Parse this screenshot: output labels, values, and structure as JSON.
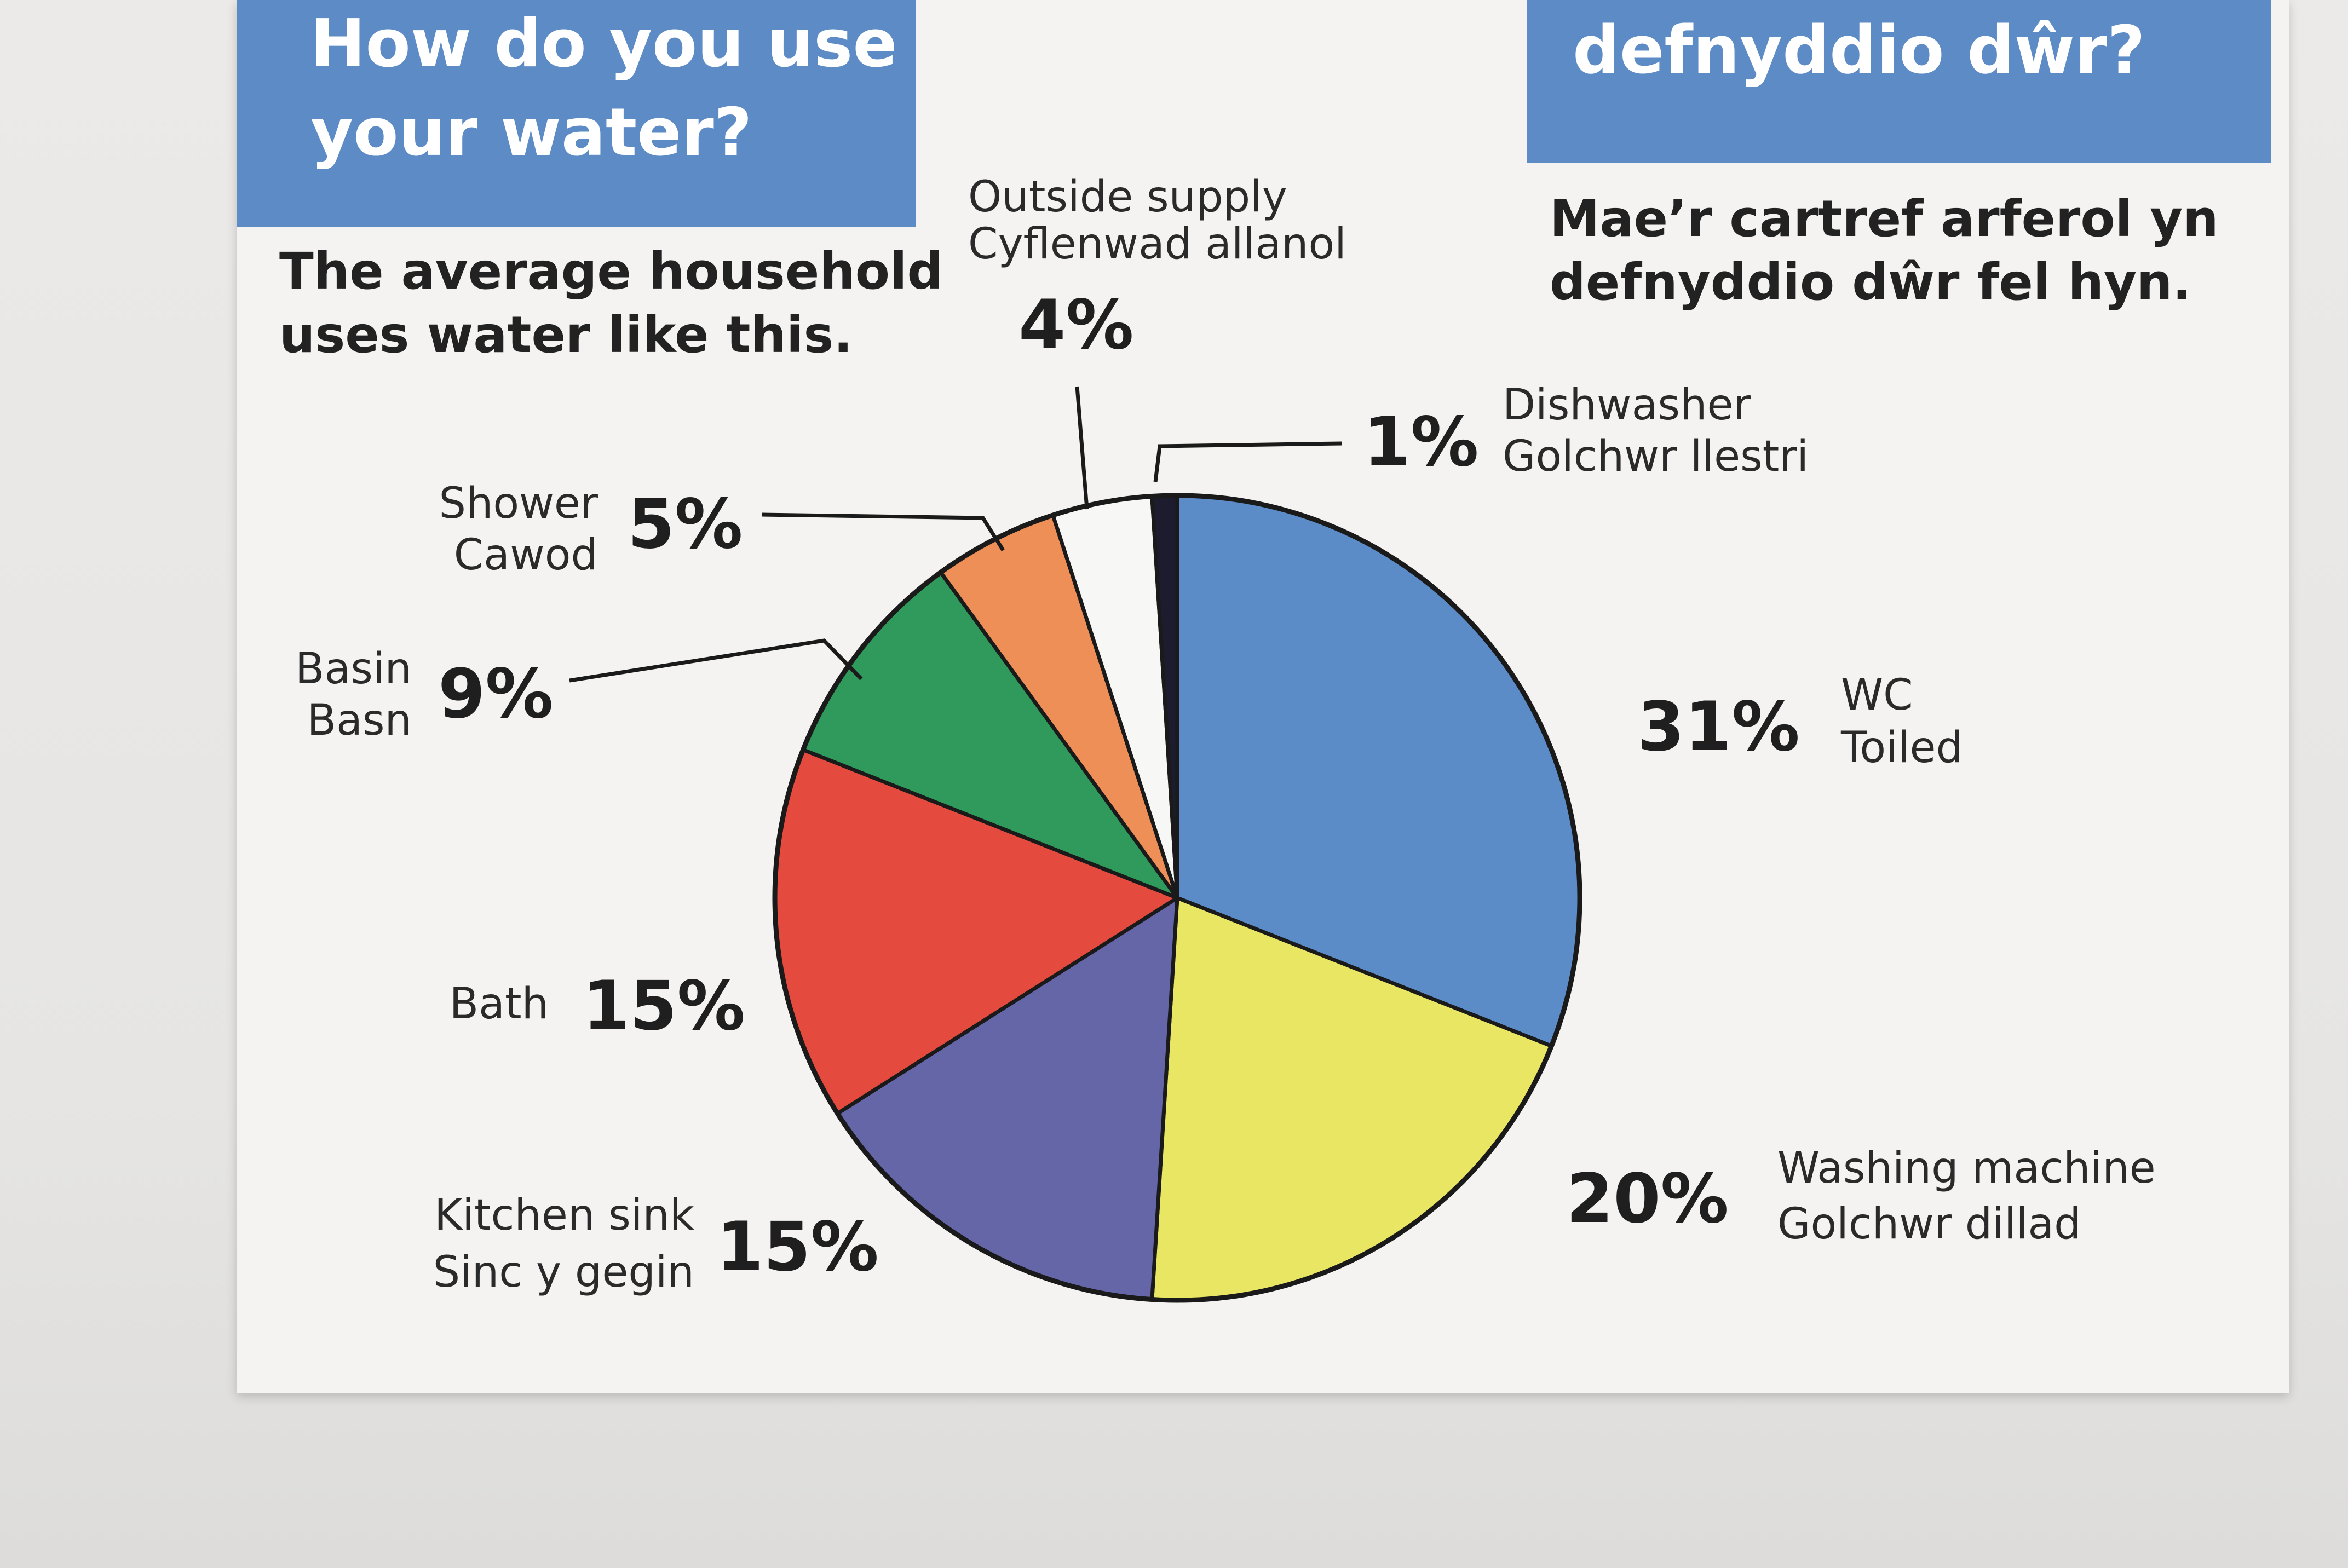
{
  "header_en": {
    "title_lines": [
      "How do you use",
      "your water?"
    ],
    "subtitle_lines": [
      "The average household",
      "uses water like this."
    ]
  },
  "header_cy": {
    "title_visible": "defnyddio dŵr?",
    "subtitle_lines": [
      "Mae’r cartref arferol yn",
      "defnyddio dŵr fel hyn."
    ]
  },
  "chart_data": {
    "type": "pie",
    "title": "How do you use your water?",
    "start": "top",
    "direction": "clockwise",
    "slices": [
      {
        "label_en": "WC",
        "label_cy": "Toiled",
        "value": 31,
        "value_text": "31%",
        "color": "#5b8cc8"
      },
      {
        "label_en": "Washing machine",
        "label_cy": "Golchwr dillad",
        "value": 20,
        "value_text": "20%",
        "color": "#e8e663"
      },
      {
        "label_en": "Kitchen sink",
        "label_cy": "Sinc y gegin",
        "value": 15,
        "value_text": "15%",
        "color": "#6566a8"
      },
      {
        "label_en": "Bath",
        "label_cy": "",
        "value": 15,
        "value_text": "15%",
        "color": "#e54a3f"
      },
      {
        "label_en": "Basin",
        "label_cy": "Basn",
        "value": 9,
        "value_text": "9%",
        "color": "#2f9a5b"
      },
      {
        "label_en": "Shower",
        "label_cy": "Cawod",
        "value": 5,
        "value_text": "5%",
        "color": "#ee8f58"
      },
      {
        "label_en": "Outside supply",
        "label_cy": "Cyflenwad allanol",
        "value": 4,
        "value_text": "4%",
        "color": "#f7f7f5"
      },
      {
        "label_en": "Dishwasher",
        "label_cy": "Golchwr llestri",
        "value": 1,
        "value_text": "1%",
        "color": "#1c1c2e"
      }
    ]
  }
}
